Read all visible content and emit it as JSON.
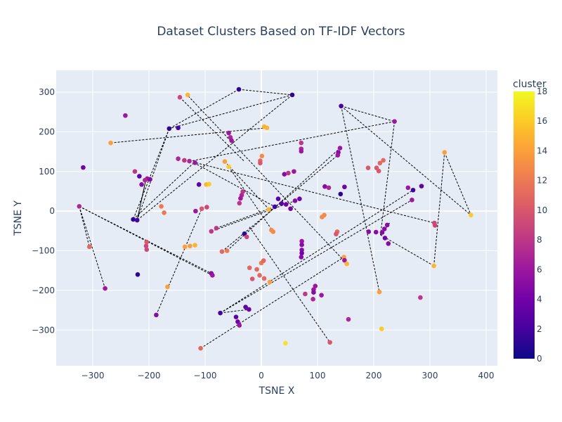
{
  "chart_data": {
    "type": "scatter",
    "title": "Dataset Clusters Based on TF-IDF Vectors",
    "xlabel": "TSNE X",
    "ylabel": "TSNE Y",
    "xlim": [
      -365,
      420
    ],
    "ylim": [
      -390,
      355
    ],
    "x_ticks": [
      -300,
      -200,
      -100,
      0,
      100,
      200,
      300,
      400
    ],
    "y_ticks": [
      -300,
      -200,
      -100,
      0,
      100,
      200,
      300
    ],
    "grid": true,
    "plot_background": "#e5ecf6",
    "colorbar": {
      "title": "cluster",
      "min": 0,
      "max": 18,
      "ticks": [
        0,
        2,
        4,
        6,
        8,
        10,
        12,
        14,
        16,
        18
      ],
      "colorscale": [
        "#0d0887",
        "#46039f",
        "#7201a8",
        "#9c179e",
        "#bd3786",
        "#d8576b",
        "#ed7953",
        "#fb9f3a",
        "#fdca26",
        "#f0f921"
      ]
    },
    "points": [
      {
        "x": -40,
        "y": 307,
        "c": 1
      },
      {
        "x": 55,
        "y": 293,
        "c": 1
      },
      {
        "x": -131,
        "y": 293,
        "c": 15
      },
      {
        "x": -145,
        "y": 287,
        "c": 9
      },
      {
        "x": 142,
        "y": 265,
        "c": 2
      },
      {
        "x": -242,
        "y": 241,
        "c": 6
      },
      {
        "x": 237,
        "y": 226,
        "c": 6
      },
      {
        "x": -164,
        "y": 208,
        "c": 1
      },
      {
        "x": -148,
        "y": 210,
        "c": 2
      },
      {
        "x": 5,
        "y": 213,
        "c": 15
      },
      {
        "x": 10,
        "y": 210,
        "c": 15
      },
      {
        "x": -58,
        "y": 197,
        "c": 6
      },
      {
        "x": -55,
        "y": 186,
        "c": 7
      },
      {
        "x": -53,
        "y": 178,
        "c": 6
      },
      {
        "x": -268,
        "y": 172,
        "c": 14
      },
      {
        "x": 71,
        "y": 172,
        "c": 8
      },
      {
        "x": 71,
        "y": 157,
        "c": 7
      },
      {
        "x": 71,
        "y": 151,
        "c": 6
      },
      {
        "x": 140,
        "y": 159,
        "c": 6
      },
      {
        "x": 137,
        "y": 148,
        "c": 5
      },
      {
        "x": 136,
        "y": 141,
        "c": 6
      },
      {
        "x": 326,
        "y": 148,
        "c": 14
      },
      {
        "x": 1,
        "y": 139,
        "c": 13
      },
      {
        "x": -2,
        "y": 127,
        "c": 11
      },
      {
        "x": -2,
        "y": 121,
        "c": 10
      },
      {
        "x": -65,
        "y": 125,
        "c": 14
      },
      {
        "x": -58,
        "y": 112,
        "c": 16
      },
      {
        "x": -148,
        "y": 132,
        "c": 7
      },
      {
        "x": -137,
        "y": 128,
        "c": 8
      },
      {
        "x": -128,
        "y": 126,
        "c": 7
      },
      {
        "x": -118,
        "y": 122,
        "c": 6
      },
      {
        "x": 217,
        "y": 128,
        "c": 11
      },
      {
        "x": 211,
        "y": 121,
        "c": 11
      },
      {
        "x": 205,
        "y": 109,
        "c": 10
      },
      {
        "x": 209,
        "y": 101,
        "c": 10
      },
      {
        "x": 190,
        "y": 109,
        "c": 10
      },
      {
        "x": -317,
        "y": 110,
        "c": 4
      },
      {
        "x": -225,
        "y": 100,
        "c": 8
      },
      {
        "x": -217,
        "y": 88,
        "c": 3
      },
      {
        "x": -203,
        "y": 82,
        "c": 6
      },
      {
        "x": -198,
        "y": 80,
        "c": 5
      },
      {
        "x": -207,
        "y": 78,
        "c": 7
      },
      {
        "x": -213,
        "y": 67,
        "c": 5
      },
      {
        "x": -111,
        "y": 67,
        "c": 3
      },
      {
        "x": -98,
        "y": 67,
        "c": 15
      },
      {
        "x": -93,
        "y": 68,
        "c": 16
      },
      {
        "x": 41,
        "y": 93,
        "c": 5
      },
      {
        "x": 48,
        "y": 96,
        "c": 8
      },
      {
        "x": 58,
        "y": 100,
        "c": 6
      },
      {
        "x": 113,
        "y": 62,
        "c": 5
      },
      {
        "x": 120,
        "y": 59,
        "c": 7
      },
      {
        "x": 148,
        "y": 61,
        "c": 4
      },
      {
        "x": 141,
        "y": 43,
        "c": 1
      },
      {
        "x": 261,
        "y": 59,
        "c": 6
      },
      {
        "x": 270,
        "y": 53,
        "c": 2
      },
      {
        "x": 285,
        "y": 63,
        "c": 3
      },
      {
        "x": 268,
        "y": 28,
        "c": 6
      },
      {
        "x": -33,
        "y": 49,
        "c": 8
      },
      {
        "x": -35,
        "y": 40,
        "c": 7
      },
      {
        "x": -37,
        "y": 32,
        "c": 6
      },
      {
        "x": -39,
        "y": 20,
        "c": 8
      },
      {
        "x": 30,
        "y": 31,
        "c": 3
      },
      {
        "x": 36,
        "y": 19,
        "c": 3
      },
      {
        "x": 44,
        "y": 17,
        "c": 4
      },
      {
        "x": 24,
        "y": 11,
        "c": 2
      },
      {
        "x": 52,
        "y": 6,
        "c": 4
      },
      {
        "x": 60,
        "y": 26,
        "c": 5
      },
      {
        "x": 68,
        "y": 31,
        "c": 4
      },
      {
        "x": 13,
        "y": 4,
        "c": 15
      },
      {
        "x": -178,
        "y": 12,
        "c": 12
      },
      {
        "x": -173,
        "y": -4,
        "c": 12
      },
      {
        "x": -106,
        "y": 6,
        "c": 10
      },
      {
        "x": -97,
        "y": 10,
        "c": 9
      },
      {
        "x": -117,
        "y": 0,
        "c": 6
      },
      {
        "x": -228,
        "y": -21,
        "c": 1
      },
      {
        "x": -221,
        "y": -23,
        "c": 2
      },
      {
        "x": 135,
        "y": -52,
        "c": 11
      },
      {
        "x": 133,
        "y": -58,
        "c": 10
      },
      {
        "x": 108,
        "y": -15,
        "c": 13
      },
      {
        "x": 112,
        "y": -10,
        "c": 13
      },
      {
        "x": 308,
        "y": -30,
        "c": 9
      },
      {
        "x": 309,
        "y": -36,
        "c": 9
      },
      {
        "x": 373,
        "y": -10,
        "c": 16
      },
      {
        "x": -324,
        "y": 12,
        "c": 7
      },
      {
        "x": -30,
        "y": -57,
        "c": 1
      },
      {
        "x": -26,
        "y": -65,
        "c": 9
      },
      {
        "x": 18,
        "y": -48,
        "c": 13
      },
      {
        "x": 21,
        "y": -52,
        "c": 13
      },
      {
        "x": -89,
        "y": -51,
        "c": 8
      },
      {
        "x": -80,
        "y": -43,
        "c": 8
      },
      {
        "x": -70,
        "y": -102,
        "c": 11
      },
      {
        "x": -61,
        "y": -100,
        "c": 12
      },
      {
        "x": -136,
        "y": -90,
        "c": 14
      },
      {
        "x": -127,
        "y": -88,
        "c": 14
      },
      {
        "x": -118,
        "y": -86,
        "c": 15
      },
      {
        "x": -306,
        "y": -90,
        "c": 11
      },
      {
        "x": -205,
        "y": -88,
        "c": 9
      },
      {
        "x": -204,
        "y": -97,
        "c": 9
      },
      {
        "x": -204,
        "y": -78,
        "c": 10
      },
      {
        "x": 72,
        "y": -76,
        "c": 6
      },
      {
        "x": 72,
        "y": -85,
        "c": 5
      },
      {
        "x": 72,
        "y": -98,
        "c": 5
      },
      {
        "x": 72,
        "y": -106,
        "c": 4
      },
      {
        "x": 71,
        "y": -116,
        "c": 5
      },
      {
        "x": 191,
        "y": -52,
        "c": 5
      },
      {
        "x": 204,
        "y": -53,
        "c": 5
      },
      {
        "x": 215,
        "y": -54,
        "c": 5
      },
      {
        "x": 224,
        "y": -35,
        "c": 5
      },
      {
        "x": 219,
        "y": -45,
        "c": 5
      },
      {
        "x": 220,
        "y": -68,
        "c": 4
      },
      {
        "x": 226,
        "y": -82,
        "c": 5
      },
      {
        "x": 147,
        "y": -116,
        "c": 14
      },
      {
        "x": 148,
        "y": -124,
        "c": 6
      },
      {
        "x": 152,
        "y": -133,
        "c": 15
      },
      {
        "x": 0,
        "y": -131,
        "c": 12
      },
      {
        "x": 4,
        "y": -125,
        "c": 11
      },
      {
        "x": -21,
        "y": -143,
        "c": 11
      },
      {
        "x": -8,
        "y": -147,
        "c": 11
      },
      {
        "x": -3,
        "y": -162,
        "c": 11
      },
      {
        "x": -16,
        "y": -171,
        "c": 10
      },
      {
        "x": 5,
        "y": -170,
        "c": 11
      },
      {
        "x": 15,
        "y": -179,
        "c": 14
      },
      {
        "x": -89,
        "y": -157,
        "c": 5
      },
      {
        "x": -87,
        "y": -162,
        "c": 6
      },
      {
        "x": -220,
        "y": -160,
        "c": 1
      },
      {
        "x": -278,
        "y": -195,
        "c": 6
      },
      {
        "x": -167,
        "y": -191,
        "c": 14
      },
      {
        "x": 96,
        "y": -189,
        "c": 6
      },
      {
        "x": 93,
        "y": -198,
        "c": 6
      },
      {
        "x": 93,
        "y": -205,
        "c": 5
      },
      {
        "x": 78,
        "y": -209,
        "c": 8
      },
      {
        "x": 107,
        "y": -212,
        "c": 6
      },
      {
        "x": 92,
        "y": -222,
        "c": 7
      },
      {
        "x": 210,
        "y": -204,
        "c": 14
      },
      {
        "x": 283,
        "y": -218,
        "c": 8
      },
      {
        "x": 307,
        "y": -138,
        "c": 15
      },
      {
        "x": -187,
        "y": -262,
        "c": 5
      },
      {
        "x": -73,
        "y": -257,
        "c": 2
      },
      {
        "x": -28,
        "y": -242,
        "c": 3
      },
      {
        "x": -22,
        "y": -248,
        "c": 4
      },
      {
        "x": -45,
        "y": -267,
        "c": 3
      },
      {
        "x": -42,
        "y": -279,
        "c": 4
      },
      {
        "x": -39,
        "y": -288,
        "c": 6
      },
      {
        "x": 155,
        "y": -273,
        "c": 7
      },
      {
        "x": 214,
        "y": -297,
        "c": 16
      },
      {
        "x": 122,
        "y": -331,
        "c": 10
      },
      {
        "x": 43,
        "y": -333,
        "c": 17
      },
      {
        "x": -108,
        "y": -346,
        "c": 11
      }
    ],
    "links": [
      [
        -40,
        307,
        55,
        293
      ],
      [
        55,
        293,
        -164,
        208
      ],
      [
        -40,
        307,
        -164,
        208
      ],
      [
        55,
        293,
        -221,
        -23
      ],
      [
        -164,
        208,
        -228,
        -21
      ],
      [
        -164,
        208,
        -221,
        -23
      ],
      [
        -145,
        287,
        -30,
        125
      ],
      [
        -130,
        290,
        145,
        -122
      ],
      [
        142,
        265,
        237,
        226
      ],
      [
        142,
        265,
        210,
        -204
      ],
      [
        142,
        265,
        373,
        -10
      ],
      [
        237,
        226,
        212,
        -60
      ],
      [
        237,
        226,
        -130,
        125
      ],
      [
        212,
        -60,
        228,
        -30
      ],
      [
        228,
        -30,
        213,
        -60
      ],
      [
        -268,
        172,
        10,
        210
      ],
      [
        -221,
        -23,
        -205,
        82
      ],
      [
        -228,
        -21,
        -120,
        122
      ],
      [
        -205,
        82,
        -221,
        -23
      ],
      [
        -65,
        125,
        14,
        4
      ],
      [
        -58,
        112,
        21,
        -52
      ],
      [
        -120,
        122,
        24,
        11
      ],
      [
        -128,
        126,
        308,
        -30
      ],
      [
        -324,
        12,
        -278,
        -195
      ],
      [
        -324,
        12,
        -306,
        -90
      ],
      [
        -324,
        12,
        -89,
        -157
      ],
      [
        -324,
        12,
        -87,
        -162
      ],
      [
        -70,
        -102,
        136,
        141
      ],
      [
        -61,
        -100,
        140,
        159
      ],
      [
        -80,
        -43,
        24,
        11
      ],
      [
        -89,
        -51,
        60,
        26
      ],
      [
        -187,
        -262,
        -106,
        6
      ],
      [
        -73,
        -257,
        270,
        53
      ],
      [
        -73,
        -257,
        268,
        28
      ],
      [
        -73,
        -257,
        -22,
        -248
      ],
      [
        -108,
        -346,
        147,
        -116
      ],
      [
        -21,
        -40,
        122,
        -331
      ],
      [
        307,
        -138,
        326,
        148
      ],
      [
        326,
        148,
        373,
        -10
      ],
      [
        307,
        -138,
        212,
        -60
      ]
    ]
  }
}
